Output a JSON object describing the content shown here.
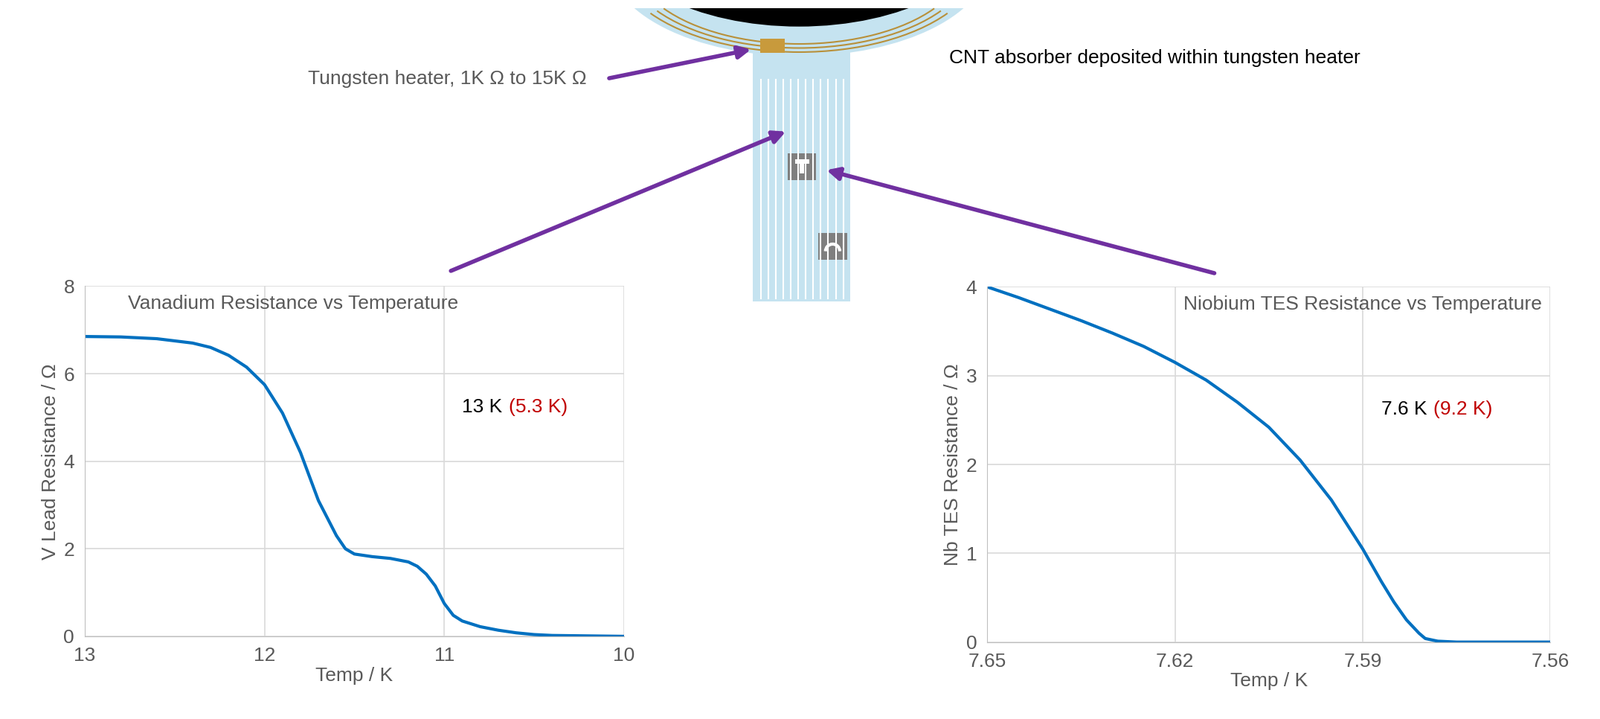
{
  "annotations": [
    {
      "text": "Tungsten heater, 1K Ω to 15K Ω",
      "color": "#595959"
    },
    {
      "text": "CNT absorber deposited within tungsten heater",
      "color": "#000000"
    }
  ],
  "chart_data": [
    {
      "type": "line",
      "title": "Vanadium Resistance vs Temperature",
      "x_label": "Temp / K",
      "y_label": "V Lead Resistance / Ω",
      "x": [
        13.0,
        12.8,
        12.6,
        12.4,
        12.3,
        12.2,
        12.1,
        12.0,
        11.9,
        11.8,
        11.7,
        11.6,
        11.55,
        11.5,
        11.4,
        11.3,
        11.2,
        11.15,
        11.1,
        11.05,
        11.0,
        10.95,
        10.9,
        10.8,
        10.7,
        10.6,
        10.5,
        10.4,
        10.2,
        10.0
      ],
      "values": [
        6.85,
        6.84,
        6.8,
        6.7,
        6.6,
        6.42,
        6.15,
        5.75,
        5.1,
        4.2,
        3.1,
        2.3,
        2.0,
        1.88,
        1.82,
        1.78,
        1.7,
        1.6,
        1.42,
        1.15,
        0.75,
        0.48,
        0.35,
        0.22,
        0.14,
        0.08,
        0.04,
        0.02,
        0.01,
        0.0
      ],
      "color": "#0070c0",
      "xlim": [
        13,
        10
      ],
      "xticks": [
        13,
        12,
        11,
        10
      ],
      "ylim": [
        0,
        8
      ],
      "yticks": [
        0,
        2,
        4,
        6,
        8
      ],
      "grid": true,
      "annotations": [
        {
          "text": "13 K",
          "color": "#000000"
        },
        {
          "text": "(5.3 K)",
          "color": "#c00000"
        }
      ]
    },
    {
      "type": "line",
      "title": "Niobium TES Resistance vs Temperature",
      "x_label": "Temp / K",
      "y_label": "Nb TES Resistance / Ω",
      "x": [
        7.65,
        7.645,
        7.64,
        7.635,
        7.63,
        7.625,
        7.62,
        7.615,
        7.61,
        7.605,
        7.6,
        7.595,
        7.59,
        7.587,
        7.585,
        7.583,
        7.581,
        7.58,
        7.578,
        7.575,
        7.57,
        7.565,
        7.56
      ],
      "values": [
        4.0,
        3.88,
        3.75,
        3.62,
        3.48,
        3.33,
        3.15,
        2.95,
        2.7,
        2.42,
        2.05,
        1.6,
        1.05,
        0.68,
        0.45,
        0.25,
        0.1,
        0.04,
        0.01,
        0.0,
        0.0,
        0.0,
        0.0
      ],
      "color": "#0070c0",
      "xlim": [
        7.65,
        7.56
      ],
      "xticks": [
        7.65,
        7.62,
        7.59,
        7.56
      ],
      "ylim": [
        0,
        4
      ],
      "yticks": [
        0,
        1,
        2,
        3,
        4
      ],
      "grid": true,
      "annotations": [
        {
          "text": "7.6 K",
          "color": "#000000"
        },
        {
          "text": "(9.2 K)",
          "color": "#c00000"
        }
      ]
    }
  ]
}
